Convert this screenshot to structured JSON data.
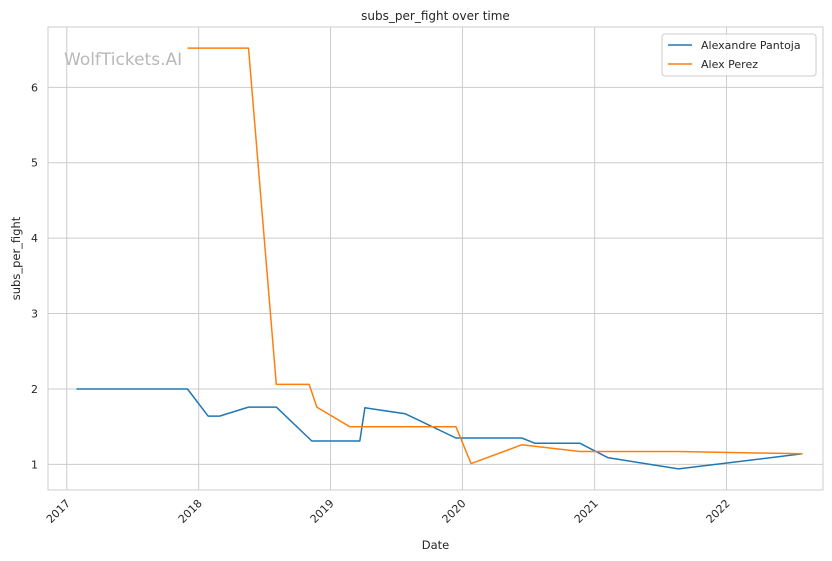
{
  "chart_data": {
    "type": "line",
    "title": "subs_per_fight over time",
    "xlabel": "Date",
    "ylabel": "subs_per_fight",
    "watermark": "WolfTickets.AI",
    "xlim": [
      "2016-11-10",
      "2022-09-25"
    ],
    "ylim": [
      0.66,
      6.8
    ],
    "x_ticks": [
      "2017-01-01",
      "2018-01-01",
      "2019-01-01",
      "2020-01-01",
      "2021-01-01",
      "2022-01-01"
    ],
    "x_tick_labels": [
      "2017",
      "2018",
      "2019",
      "2020",
      "2021",
      "2022"
    ],
    "y_ticks": [
      1,
      2,
      3,
      4,
      5,
      6
    ],
    "y_tick_labels": [
      "1",
      "2",
      "3",
      "4",
      "5",
      "6"
    ],
    "grid": true,
    "legend_position": "top-right",
    "series": [
      {
        "name": "Alexandre Pantoja",
        "color": "#1f77b4",
        "points": [
          [
            "2017-01-28",
            2.0
          ],
          [
            "2017-12-01",
            2.0
          ],
          [
            "2018-01-27",
            1.64
          ],
          [
            "2018-02-28",
            1.64
          ],
          [
            "2018-05-19",
            1.76
          ],
          [
            "2018-08-04",
            1.76
          ],
          [
            "2018-11-10",
            1.31
          ],
          [
            "2019-03-23",
            1.31
          ],
          [
            "2019-04-06",
            1.75
          ],
          [
            "2019-07-27",
            1.67
          ],
          [
            "2019-12-14",
            1.35
          ],
          [
            "2020-06-13",
            1.35
          ],
          [
            "2020-07-19",
            1.28
          ],
          [
            "2020-11-21",
            1.28
          ],
          [
            "2021-02-06",
            1.09
          ],
          [
            "2021-08-21",
            0.94
          ],
          [
            "2022-07-30",
            1.14
          ]
        ]
      },
      {
        "name": "Alex Perez",
        "color": "#ff7f0e",
        "points": [
          [
            "2017-12-01",
            6.52
          ],
          [
            "2018-05-19",
            6.52
          ],
          [
            "2018-08-04",
            2.06
          ],
          [
            "2018-11-03",
            2.06
          ],
          [
            "2018-11-24",
            1.76
          ],
          [
            "2019-02-23",
            1.5
          ],
          [
            "2019-12-14",
            1.5
          ],
          [
            "2020-01-25",
            1.01
          ],
          [
            "2020-06-13",
            1.26
          ],
          [
            "2020-11-21",
            1.17
          ],
          [
            "2021-08-21",
            1.17
          ],
          [
            "2022-07-30",
            1.14
          ]
        ]
      }
    ]
  }
}
